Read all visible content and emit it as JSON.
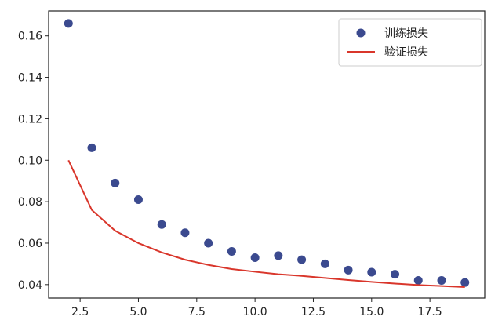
{
  "chart_data": {
    "type": "scatter",
    "title": "",
    "xlabel": "",
    "ylabel": "",
    "xlim": [
      1.15,
      19.85
    ],
    "ylim": [
      0.0335,
      0.172
    ],
    "xticks": [
      2.5,
      5.0,
      7.5,
      10.0,
      12.5,
      15.0,
      17.5
    ],
    "xtick_labels": [
      "2.5",
      "5.0",
      "7.5",
      "10.0",
      "12.5",
      "15.0",
      "17.5"
    ],
    "yticks": [
      0.04,
      0.06,
      0.08,
      0.1,
      0.12,
      0.14,
      0.16
    ],
    "ytick_labels": [
      "0.04",
      "0.06",
      "0.08",
      "0.10",
      "0.12",
      "0.14",
      "0.16"
    ],
    "grid": false,
    "legend_position": "top-right",
    "series": [
      {
        "name": "训练损失",
        "kind": "scatter",
        "color": "#3b4a8f",
        "x": [
          2,
          3,
          4,
          5,
          6,
          7,
          8,
          9,
          10,
          11,
          12,
          13,
          14,
          15,
          16,
          17,
          18,
          19
        ],
        "values": [
          0.166,
          0.106,
          0.089,
          0.081,
          0.069,
          0.065,
          0.06,
          0.056,
          0.053,
          0.054,
          0.052,
          0.05,
          0.047,
          0.046,
          0.045,
          0.042,
          0.042,
          0.041
        ]
      },
      {
        "name": "验证损失",
        "kind": "line",
        "color": "#d9362b",
        "x": [
          2,
          3,
          4,
          5,
          6,
          7,
          8,
          9,
          10,
          11,
          12,
          13,
          14,
          15,
          16,
          17,
          18,
          19
        ],
        "values": [
          0.1,
          0.076,
          0.066,
          0.06,
          0.0555,
          0.052,
          0.0495,
          0.0475,
          0.0462,
          0.045,
          0.0442,
          0.0432,
          0.0422,
          0.0413,
          0.0405,
          0.0398,
          0.0393,
          0.0388
        ]
      }
    ]
  }
}
